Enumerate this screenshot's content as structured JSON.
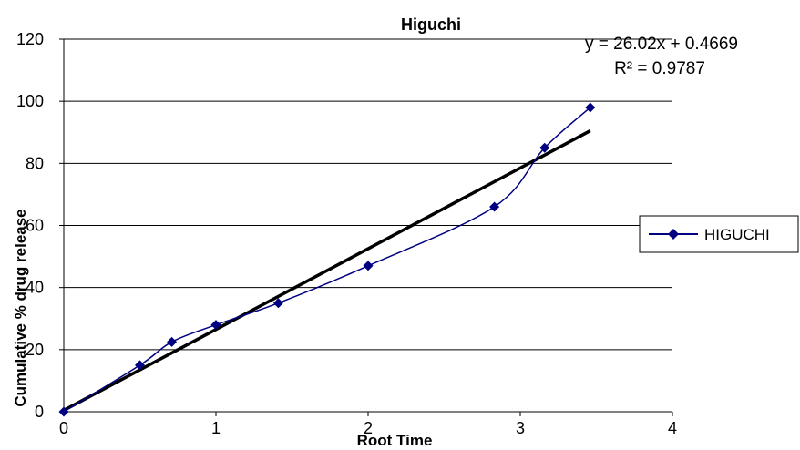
{
  "chart_data": {
    "type": "scatter",
    "title": "Higuchi",
    "xlabel": "Root Time",
    "ylabel": "Cumulative % drug release",
    "xlim": [
      0,
      4
    ],
    "ylim": [
      0,
      120
    ],
    "xticks": [
      "0",
      "1",
      "2",
      "3",
      "4"
    ],
    "yticks": [
      "0",
      "20",
      "40",
      "60",
      "80",
      "100",
      "120"
    ],
    "grid": "horizontal",
    "legend_position": "right",
    "series": [
      {
        "name": "HIGUCHI",
        "color": "#000080",
        "marker": "diamond",
        "smooth": true,
        "x": [
          0,
          0.5,
          0.71,
          1.0,
          1.41,
          2.0,
          2.83,
          3.16,
          3.46
        ],
        "y": [
          0,
          15,
          22.5,
          28,
          35,
          47,
          66,
          85,
          98
        ]
      }
    ],
    "trendline": {
      "type": "linear",
      "slope": 26.02,
      "intercept": 0.4669,
      "x_range": [
        0,
        3.46
      ],
      "color": "#000000",
      "equation": "y = 26.02x + 0.4669",
      "r_squared": "R² = 0.9787"
    }
  }
}
